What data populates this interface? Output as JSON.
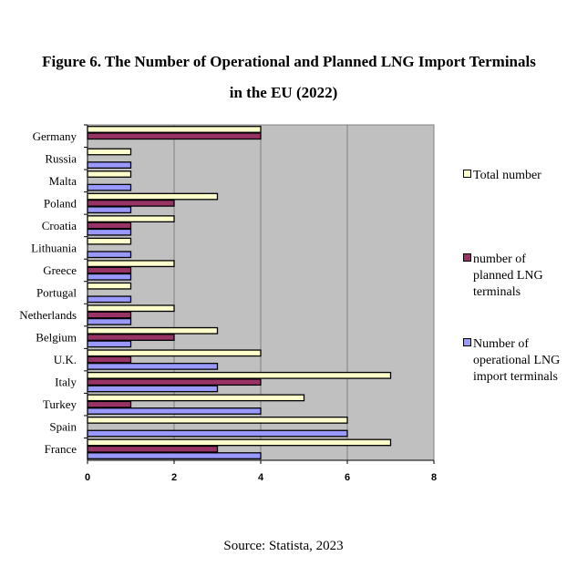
{
  "title_line1": "Figure 6. The Number of Operational and Planned LNG Import Terminals",
  "title_line2": "in the EU (2022)",
  "source": "Source: Statista, 2023",
  "chart_data": {
    "type": "bar",
    "orientation": "horizontal",
    "title": "Figure 6. The Number of Operational and Planned LNG Import Terminals in the EU (2022)",
    "xlabel": "",
    "ylabel": "",
    "xlim": [
      0,
      8
    ],
    "x_ticks": [
      0,
      2,
      4,
      6,
      8
    ],
    "grid": true,
    "legend_position": "right",
    "categories": [
      "Germany",
      "Russia",
      "Malta",
      "Poland",
      "Croatia",
      "Lithuania",
      "Greece",
      "Portugal",
      "Netherlands",
      "Belgium",
      "U.K.",
      "Italy",
      "Turkey",
      "Spain",
      "France"
    ],
    "series": [
      {
        "name": "Total number",
        "color": "#FFFFCC",
        "values": [
          4,
          1,
          1,
          3,
          2,
          1,
          2,
          1,
          2,
          3,
          4,
          7,
          5,
          6,
          7
        ]
      },
      {
        "name": "number of planned LNG terminals",
        "color": "#993366",
        "values": [
          4,
          0,
          0,
          2,
          1,
          0,
          1,
          0,
          1,
          2,
          1,
          4,
          1,
          0,
          3
        ]
      },
      {
        "name": "Number of operational LNG import terminals",
        "color": "#9999FF",
        "values": [
          0,
          1,
          1,
          1,
          1,
          1,
          1,
          1,
          1,
          1,
          3,
          3,
          4,
          6,
          4
        ]
      }
    ],
    "plot_background": "#C0C0C0"
  },
  "legend": [
    {
      "label": "Total number",
      "color": "#FFFFCC"
    },
    {
      "label": "number of\nplanned LNG\nterminals",
      "color": "#993366"
    },
    {
      "label": "Number of\noperational LNG\nimport terminals",
      "color": "#9999FF"
    }
  ]
}
